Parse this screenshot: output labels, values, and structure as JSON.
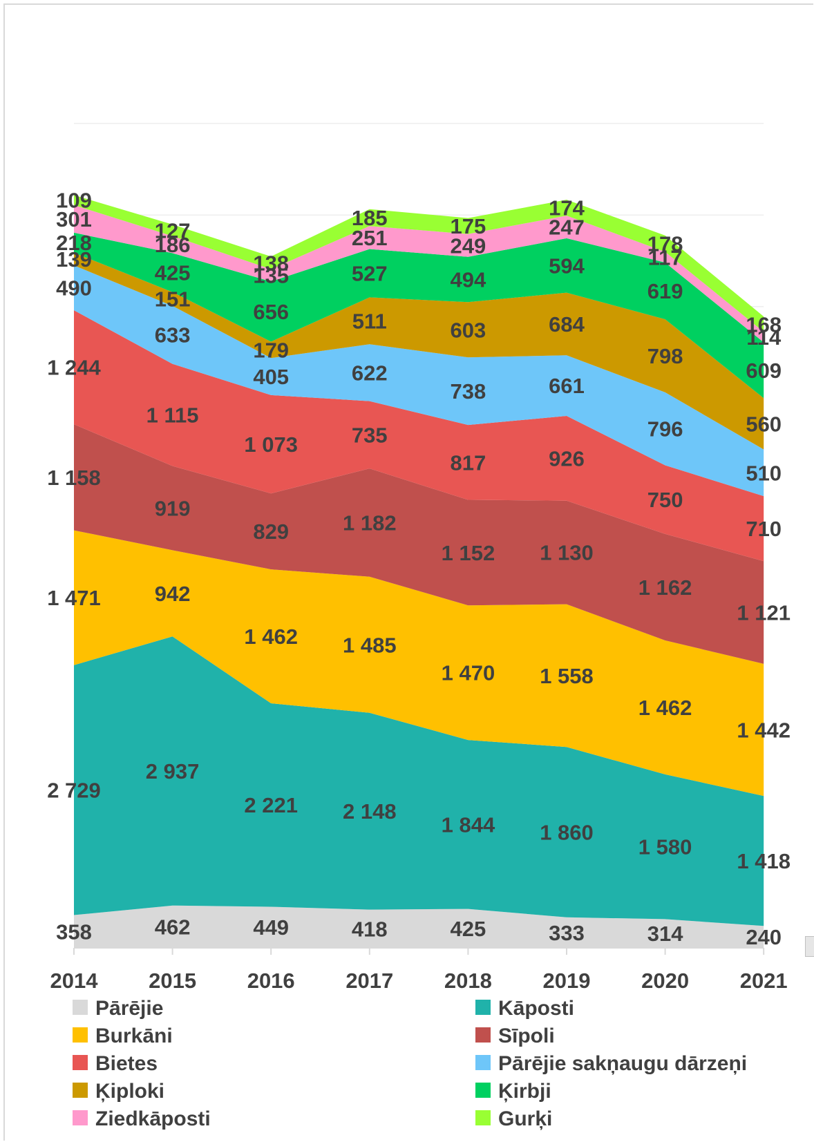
{
  "chart_data": {
    "type": "area",
    "stacked": true,
    "categories": [
      "2014",
      "2015",
      "2016",
      "2017",
      "2018",
      "2019",
      "2020",
      "2021"
    ],
    "series": [
      {
        "name": "Pārējie",
        "color": "#d9d9d9",
        "values": [
          358,
          462,
          449,
          418,
          425,
          333,
          314,
          240
        ],
        "labels": [
          "358",
          "462",
          "449",
          "418",
          "425",
          "333",
          "314",
          "240"
        ]
      },
      {
        "name": "Kāposti",
        "color": "#20b2aa",
        "values": [
          2729,
          2937,
          2221,
          2148,
          1844,
          1860,
          1580,
          1418
        ],
        "labels": [
          "2 729",
          "2 937",
          "2 221",
          "2 148",
          "1 844",
          "1 860",
          "1 580",
          "1 418"
        ]
      },
      {
        "name": "Burkāni",
        "color": "#ffc000",
        "values": [
          1471,
          942,
          1462,
          1485,
          1470,
          1558,
          1462,
          1442
        ],
        "labels": [
          "1 471",
          "942",
          "1 462",
          "1 485",
          "1 470",
          "1 558",
          "1 462",
          "1 442"
        ]
      },
      {
        "name": "Sīpoli",
        "color": "#c0504d",
        "values": [
          1158,
          919,
          829,
          1182,
          1152,
          1130,
          1162,
          1121
        ],
        "labels": [
          "1 158",
          "919",
          "829",
          "1 182",
          "1 152",
          "1 130",
          "1 162",
          "1 121"
        ]
      },
      {
        "name": "Bietes",
        "color": "#e85653",
        "values": [
          1244,
          1115,
          1073,
          735,
          817,
          926,
          750,
          710
        ],
        "labels": [
          "1 244",
          "1 115",
          "1 073",
          "735",
          "817",
          "926",
          "750",
          "710"
        ]
      },
      {
        "name": "Pārējie sakņaugu dārzeņi",
        "color": "#6ec6f9",
        "values": [
          490,
          633,
          405,
          622,
          738,
          661,
          796,
          510
        ],
        "labels": [
          "490",
          "633",
          "405",
          "622",
          "738",
          "661",
          "796",
          "510"
        ]
      },
      {
        "name": "Ķiploki",
        "color": "#cc9900",
        "values": [
          139,
          151,
          179,
          511,
          603,
          684,
          798,
          560
        ],
        "labels": [
          "139",
          "151",
          "179",
          "511",
          "603",
          "684",
          "798",
          "560"
        ]
      },
      {
        "name": "Ķirbji",
        "color": "#00d060",
        "values": [
          218,
          425,
          656,
          527,
          494,
          594,
          619,
          609
        ],
        "labels": [
          "218",
          "425",
          "656",
          "527",
          "494",
          "594",
          "619",
          "609"
        ]
      },
      {
        "name": "Ziedkāposti",
        "color": "#ff99cc",
        "values": [
          301,
          186,
          135,
          251,
          249,
          247,
          117,
          114
        ],
        "labels": [
          "301",
          "186",
          "135",
          "251",
          "249",
          "247",
          "117",
          "114"
        ]
      },
      {
        "name": "Gurķi",
        "color": "#99ff33",
        "values": [
          109,
          127,
          138,
          185,
          175,
          174,
          178,
          168
        ],
        "labels": [
          "109",
          "127",
          "138",
          "185",
          "175",
          "174",
          "178",
          "168"
        ]
      }
    ],
    "ylim": [
      0,
      9000
    ],
    "grid": true,
    "legend": "bottom",
    "title": "",
    "xlabel": "",
    "ylabel": ""
  }
}
